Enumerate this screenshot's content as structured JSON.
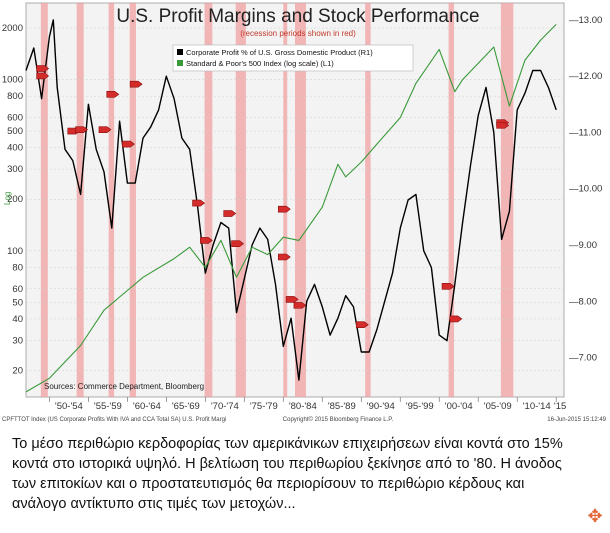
{
  "chart_data": {
    "type": "line",
    "title": "U.S. Profit Margins and Stock Performance",
    "subtitle": "(recession periods shown in red)",
    "legend_position": "top-center",
    "series": [
      {
        "name": "Corporate Profit % of U.S. Gross Domestic Product (R1)",
        "axis": "right",
        "color": "#000000",
        "x": [
          1947,
          1948,
          1949,
          1950,
          1950.5,
          1951,
          1952,
          1953,
          1954,
          1955,
          1956,
          1957,
          1958,
          1959,
          1960,
          1961,
          1962,
          1963,
          1964,
          1965,
          1966,
          1967,
          1968,
          1969,
          1970,
          1971,
          1972,
          1973,
          1974,
          1975,
          1976,
          1977,
          1978,
          1979,
          1980,
          1981,
          1982,
          1983,
          1984,
          1985,
          1986,
          1987,
          1988,
          1989,
          1990,
          1991,
          1992,
          1993,
          1994,
          1995,
          1996,
          1997,
          1998,
          1999,
          2000,
          2001,
          2002,
          2003,
          2004,
          2005,
          2006,
          2007,
          2008,
          2009,
          2010,
          2011,
          2012,
          2013,
          2014,
          2015
        ],
        "values": [
          12.1,
          12.5,
          11.6,
          12.7,
          13.0,
          11.8,
          10.7,
          10.5,
          9.9,
          11.5,
          10.7,
          10.3,
          9.3,
          11.2,
          10.1,
          10.1,
          10.9,
          11.1,
          11.4,
          12.0,
          11.6,
          10.9,
          10.7,
          9.7,
          8.5,
          9.0,
          9.4,
          9.3,
          7.8,
          8.4,
          9.0,
          9.3,
          9.1,
          8.3,
          7.2,
          7.7,
          6.6,
          8.0,
          8.3,
          7.9,
          7.4,
          7.7,
          8.1,
          7.9,
          7.1,
          7.1,
          7.5,
          8.0,
          8.5,
          9.3,
          9.8,
          9.9,
          8.9,
          8.6,
          7.4,
          7.3,
          8.3,
          9.4,
          10.4,
          11.3,
          11.8,
          11.0,
          9.1,
          9.6,
          11.4,
          11.7,
          12.1,
          12.1,
          11.8,
          11.4
        ]
      },
      {
        "name": "Standard & Poor's 500 Index (log scale) (L1)",
        "axis": "left",
        "color": "#3a9a3a",
        "x": [
          1947,
          1950,
          1954,
          1957,
          1962,
          1966,
          1968,
          1970,
          1972,
          1974,
          1976,
          1978,
          1980,
          1982,
          1985,
          1987,
          1988,
          1990,
          1992,
          1995,
          1997,
          2000,
          2002,
          2003,
          2007,
          2009,
          2011,
          2013,
          2015
        ],
        "values": [
          15,
          18,
          28,
          45,
          70,
          90,
          105,
          80,
          115,
          70,
          105,
          95,
          120,
          115,
          180,
          320,
          270,
          330,
          420,
          600,
          950,
          1500,
          850,
          1000,
          1550,
          700,
          1300,
          1700,
          2100
        ]
      }
    ],
    "recessions": [
      [
        1948.9,
        1949.8
      ],
      [
        1953.5,
        1954.4
      ],
      [
        1957.6,
        1958.3
      ],
      [
        1960.3,
        1961.1
      ],
      [
        1969.9,
        1970.9
      ],
      [
        1973.9,
        1975.2
      ],
      [
        1980.0,
        1980.5
      ],
      [
        1981.5,
        1982.9
      ],
      [
        1990.5,
        1991.2
      ],
      [
        2001.2,
        2001.9
      ],
      [
        2007.9,
        2009.5
      ]
    ],
    "markers": [
      {
        "x": 1949,
        "y": 1160
      },
      {
        "x": 1949,
        "y": 1050
      },
      {
        "x": 1953,
        "y": 500
      },
      {
        "x": 1954,
        "y": 510
      },
      {
        "x": 1957,
        "y": 510
      },
      {
        "x": 1958,
        "y": 820
      },
      {
        "x": 1960,
        "y": 420
      },
      {
        "x": 1961,
        "y": 940
      },
      {
        "x": 1969,
        "y": 190
      },
      {
        "x": 1970,
        "y": 115
      },
      {
        "x": 1973,
        "y": 165
      },
      {
        "x": 1974,
        "y": 110
      },
      {
        "x": 1980,
        "y": 92
      },
      {
        "x": 1980,
        "y": 175
      },
      {
        "x": 1981,
        "y": 52
      },
      {
        "x": 1982,
        "y": 48
      },
      {
        "x": 1990,
        "y": 37
      },
      {
        "x": 2001,
        "y": 62
      },
      {
        "x": 2002,
        "y": 40
      },
      {
        "x": 2008,
        "y": 560
      },
      {
        "x": 2008,
        "y": 540
      }
    ],
    "left_axis": {
      "scale": "log",
      "ticks": [
        20,
        30,
        40,
        50,
        60,
        80,
        100,
        200,
        300,
        400,
        500,
        600,
        800,
        1000,
        2000
      ],
      "range": [
        14,
        2800
      ]
    },
    "right_axis": {
      "ticks": [
        "13.00",
        "12.00",
        "11.00",
        "10.00",
        "9.00",
        "8.00",
        "7.00"
      ],
      "range": [
        6.3,
        13.3
      ]
    },
    "x_axis": {
      "range": [
        1947,
        2016
      ],
      "tick_labels": [
        "'50-'54",
        "'55-'59",
        "'60-'64",
        "'65-'69",
        "'70-'74",
        "'75-'79",
        "'80-'84",
        "'85-'89",
        "'90-'94",
        "'95-'99",
        "'00-'04",
        "'05-'09",
        "'10-'14",
        "'15"
      ]
    },
    "y_unit_label": "Log",
    "source_note": "Sources: Commerce Department, Bloomberg",
    "footer_left": "CPFTTOT Index (US Corporate Profits With IVA and CCA Total SA) U.S. Profit Margi",
    "footer_center": "Copyright© 2015 Bloomberg Finance L.P.",
    "footer_right": "16-Jun-2015 15:12:49"
  },
  "caption": "Το μέσο περιθώριο κερδοφορίας των αμερικάνικων επιχειρήσεων είναι κοντά στο 15% κοντά στο ιστορικά υψηλό. Η βελτίωση του περιθωρίου ξεκίνησε από το '80. Η άνοδος των επιτοκίων και ο προστατευτισμός θα περιορίσουν το περιθώριο κέρδους και ανάλογο αντίκτυπο στις τιμές των μετοχών...",
  "icons": {
    "corner": "move-arrows-icon"
  }
}
